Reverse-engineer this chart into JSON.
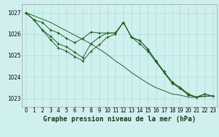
{
  "title": "Graphe pression niveau de la mer (hPa)",
  "bg_color": "#cff0ee",
  "grid_color": "#aaddd8",
  "line_color": "#1a5c1a",
  "xlim": [
    -0.5,
    23.5
  ],
  "ylim": [
    1022.6,
    1027.4
  ],
  "yticks": [
    1023,
    1024,
    1025,
    1026,
    1027
  ],
  "xticks": [
    0,
    1,
    2,
    3,
    4,
    5,
    6,
    7,
    8,
    9,
    10,
    11,
    12,
    13,
    14,
    15,
    16,
    17,
    18,
    19,
    20,
    21,
    22,
    23
  ],
  "series": [
    {
      "x": [
        0,
        1,
        2,
        3,
        4,
        5,
        6,
        7,
        8,
        9,
        10,
        11,
        12,
        13,
        14,
        15,
        16,
        17,
        18,
        19,
        20,
        21,
        22,
        23
      ],
      "y": [
        1027.0,
        1026.85,
        1026.7,
        1026.55,
        1026.35,
        1026.15,
        1025.95,
        1025.75,
        1025.55,
        1025.3,
        1025.05,
        1024.75,
        1024.5,
        1024.2,
        1023.95,
        1023.7,
        1023.5,
        1023.35,
        1023.2,
        1023.15,
        1023.05,
        1023.05,
        1023.1,
        1023.1
      ],
      "has_markers": false
    },
    {
      "x": [
        0,
        1,
        2,
        3,
        4,
        5,
        6,
        7,
        8,
        9,
        10,
        11,
        12,
        13,
        14,
        15,
        16,
        17,
        18,
        19,
        20,
        21,
        22,
        23
      ],
      "y": [
        1027.0,
        1026.65,
        1026.55,
        1026.2,
        1026.05,
        1025.8,
        1025.6,
        1025.8,
        1026.1,
        1026.05,
        1026.05,
        1026.05,
        1026.55,
        1025.85,
        1025.7,
        1025.3,
        1024.75,
        1024.25,
        1023.75,
        1023.5,
        1023.2,
        1023.05,
        1023.2,
        1023.1
      ],
      "has_markers": true
    },
    {
      "x": [
        0,
        1,
        2,
        3,
        4,
        5,
        6,
        7,
        8,
        9,
        10,
        11,
        12,
        13,
        14,
        15,
        16,
        17,
        18,
        19,
        20,
        21,
        22,
        23
      ],
      "y": [
        1027.0,
        1026.65,
        1026.2,
        1025.9,
        1025.55,
        1025.4,
        1025.15,
        1024.9,
        1025.55,
        1025.85,
        1026.05,
        1026.05,
        1026.55,
        1025.85,
        1025.7,
        1025.3,
        1024.75,
        1024.25,
        1023.75,
        1023.5,
        1023.2,
        1023.05,
        1023.2,
        1023.1
      ],
      "has_markers": true
    },
    {
      "x": [
        0,
        1,
        2,
        3,
        4,
        5,
        6,
        7,
        8,
        9,
        10,
        11,
        12,
        13,
        14,
        15,
        16,
        17,
        18,
        19,
        20,
        21,
        22,
        23
      ],
      "y": [
        1027.0,
        1026.65,
        1026.2,
        1025.75,
        1025.35,
        1025.2,
        1024.95,
        1024.75,
        1025.2,
        1025.5,
        1025.85,
        1026.0,
        1026.55,
        1025.85,
        1025.55,
        1025.2,
        1024.7,
        1024.2,
        1023.7,
        1023.45,
        1023.15,
        1023.05,
        1023.1,
        1023.1
      ],
      "has_markers": true
    }
  ],
  "title_fontsize": 7.0,
  "tick_fontsize": 5.5
}
